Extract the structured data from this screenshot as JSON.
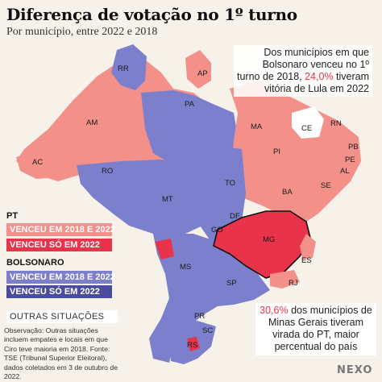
{
  "header": {
    "title": "Diferença de votação no 1º turno",
    "subtitle": "Por município, entre 2022 e 2018"
  },
  "callout_top": {
    "text_before": "Dos municípios em que Bolsonaro venceu no 1º turno de 2018, ",
    "highlight": "24,0%",
    "text_after": " tiveram vitória de Lula em 2022"
  },
  "callout_bottom": {
    "highlight": "30,6%",
    "text_after": " dos municípios de Minas Gerais tiveram virada do PT, maior percentual do país"
  },
  "legend": {
    "pt_label": "PT",
    "pt_items": [
      {
        "label": "VENCEU EM 2018 E 2022",
        "color": "#f4908a"
      },
      {
        "label": "VENCEU SÓ EM 2022",
        "color": "#e8334a"
      }
    ],
    "bolsonaro_label": "BOLSONARO",
    "bolsonaro_items": [
      {
        "label": "VENCEU EM 2018 E 2022",
        "color": "#7b7fcc"
      },
      {
        "label": "VENCEU SÓ EM 2022",
        "color": "#4b4ba0"
      }
    ],
    "other_label": "OUTRAS SITUAÇÕES",
    "other_color": "#ffffff"
  },
  "note": "Observação: Outras situações incluem empates e locais em que Ciro teve maioria em 2018. Fonte: TSE (Tribunal Superior Eleitoral), dados coletados em 3 de outubro de 2022.",
  "brand": "NEXO",
  "map": {
    "highlighted_state": "MG",
    "states": [
      "RR",
      "AP",
      "AM",
      "PA",
      "MA",
      "CE",
      "RN",
      "PB",
      "PE",
      "AL",
      "SE",
      "PI",
      "AC",
      "RO",
      "TO",
      "BA",
      "MT",
      "DF",
      "GO",
      "MG",
      "ES",
      "MS",
      "SP",
      "RJ",
      "PR",
      "SC",
      "RS"
    ]
  }
}
